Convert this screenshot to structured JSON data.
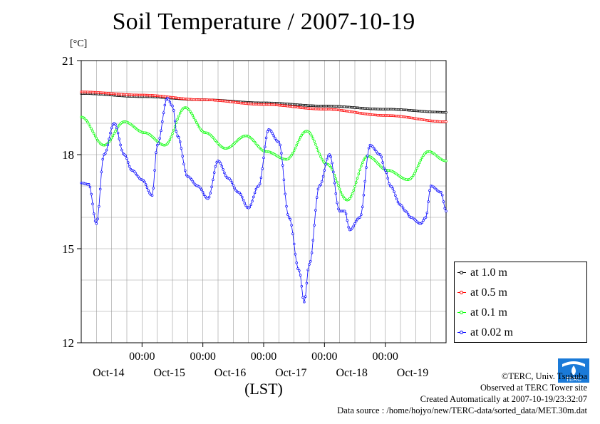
{
  "chart_data": {
    "type": "line",
    "title": "Soil Temperature / 2007-10-19",
    "unit": "[°C]",
    "xlabel": "(LST)",
    "x_hours": [
      0,
      6,
      10,
      14,
      18,
      22,
      24,
      26,
      30,
      34,
      38,
      42,
      46,
      48,
      50,
      54,
      58,
      62,
      66,
      68,
      70,
      74,
      78,
      82,
      86,
      90,
      94,
      98,
      102,
      106,
      110,
      114,
      118,
      122,
      126,
      130,
      134,
      138,
      142,
      144
    ],
    "xlim": [
      0,
      144
    ],
    "ylim": [
      12,
      21
    ],
    "yticks": [
      12,
      15,
      18,
      21
    ],
    "tick_labels": [
      {
        "hour": 24,
        "text": "00:00",
        "day": "Oct-14"
      },
      {
        "hour": 48,
        "text": "00:00",
        "day": "Oct-15"
      },
      {
        "hour": 72,
        "text": "00:00",
        "day": "Oct-16"
      },
      {
        "hour": 96,
        "text": "00:00",
        "day": "Oct-17"
      },
      {
        "hour": 120,
        "text": "00:00",
        "day": "Oct-18"
      },
      {
        "hour": 144,
        "text": "",
        "day": "Oct-19"
      }
    ],
    "series": [
      {
        "name": "at 1.0 m",
        "color": "#000000",
        "x": [
          0,
          24,
          48,
          72,
          96,
          120,
          144
        ],
        "y": [
          19.95,
          19.85,
          19.75,
          19.65,
          19.55,
          19.45,
          19.35
        ]
      },
      {
        "name": "at 0.5 m",
        "color": "#ff0000",
        "x": [
          0,
          24,
          48,
          72,
          96,
          120,
          144
        ],
        "y": [
          20.0,
          19.9,
          19.75,
          19.6,
          19.45,
          19.25,
          19.05
        ]
      },
      {
        "name": "at 0.1 m",
        "color": "#00ff00",
        "x": [
          0,
          9,
          17,
          25,
          33,
          41,
          49,
          57,
          65,
          73,
          81,
          89,
          97,
          105,
          113,
          121,
          129,
          137,
          144
        ],
        "y": [
          19.2,
          18.3,
          19.05,
          18.7,
          18.3,
          19.5,
          18.7,
          18.2,
          18.6,
          18.1,
          17.85,
          18.75,
          17.7,
          16.55,
          17.95,
          17.5,
          17.2,
          18.1,
          17.8
        ]
      },
      {
        "name": "at 0.02 m",
        "color": "#0000ff",
        "x": [
          0,
          3,
          6,
          9,
          13,
          17,
          20,
          24,
          28,
          30,
          34,
          36,
          38,
          42,
          46,
          50,
          54,
          58,
          62,
          66,
          70,
          74,
          78,
          82,
          86,
          88,
          90,
          94,
          98,
          102,
          104,
          106,
          110,
          114,
          118,
          120,
          122,
          126,
          128,
          130,
          134,
          136,
          138,
          142,
          144
        ],
        "y": [
          17.1,
          17.05,
          15.8,
          18.0,
          19.0,
          18.0,
          17.5,
          17.2,
          16.7,
          18.3,
          19.8,
          19.55,
          18.6,
          17.3,
          17.0,
          16.6,
          17.8,
          17.25,
          16.8,
          16.3,
          17.0,
          18.8,
          18.4,
          16.0,
          14.3,
          13.3,
          14.5,
          17.0,
          18.0,
          16.2,
          16.2,
          15.6,
          16.0,
          18.3,
          18.0,
          17.5,
          17.0,
          16.4,
          16.2,
          16.0,
          15.8,
          16.0,
          17.0,
          16.8,
          16.2
        ]
      }
    ],
    "legend_position": "right"
  },
  "credits": {
    "copyright": "©TERC, Univ. Tsukuba",
    "observed": "Observed at TERC Tower site",
    "created": "Created Automatically at 2007-10-19/23:32:07",
    "source": "Data source : /home/hojyo/new/TERC-data/sorted_data/MET.30m.dat",
    "logo_text": "TERC"
  }
}
